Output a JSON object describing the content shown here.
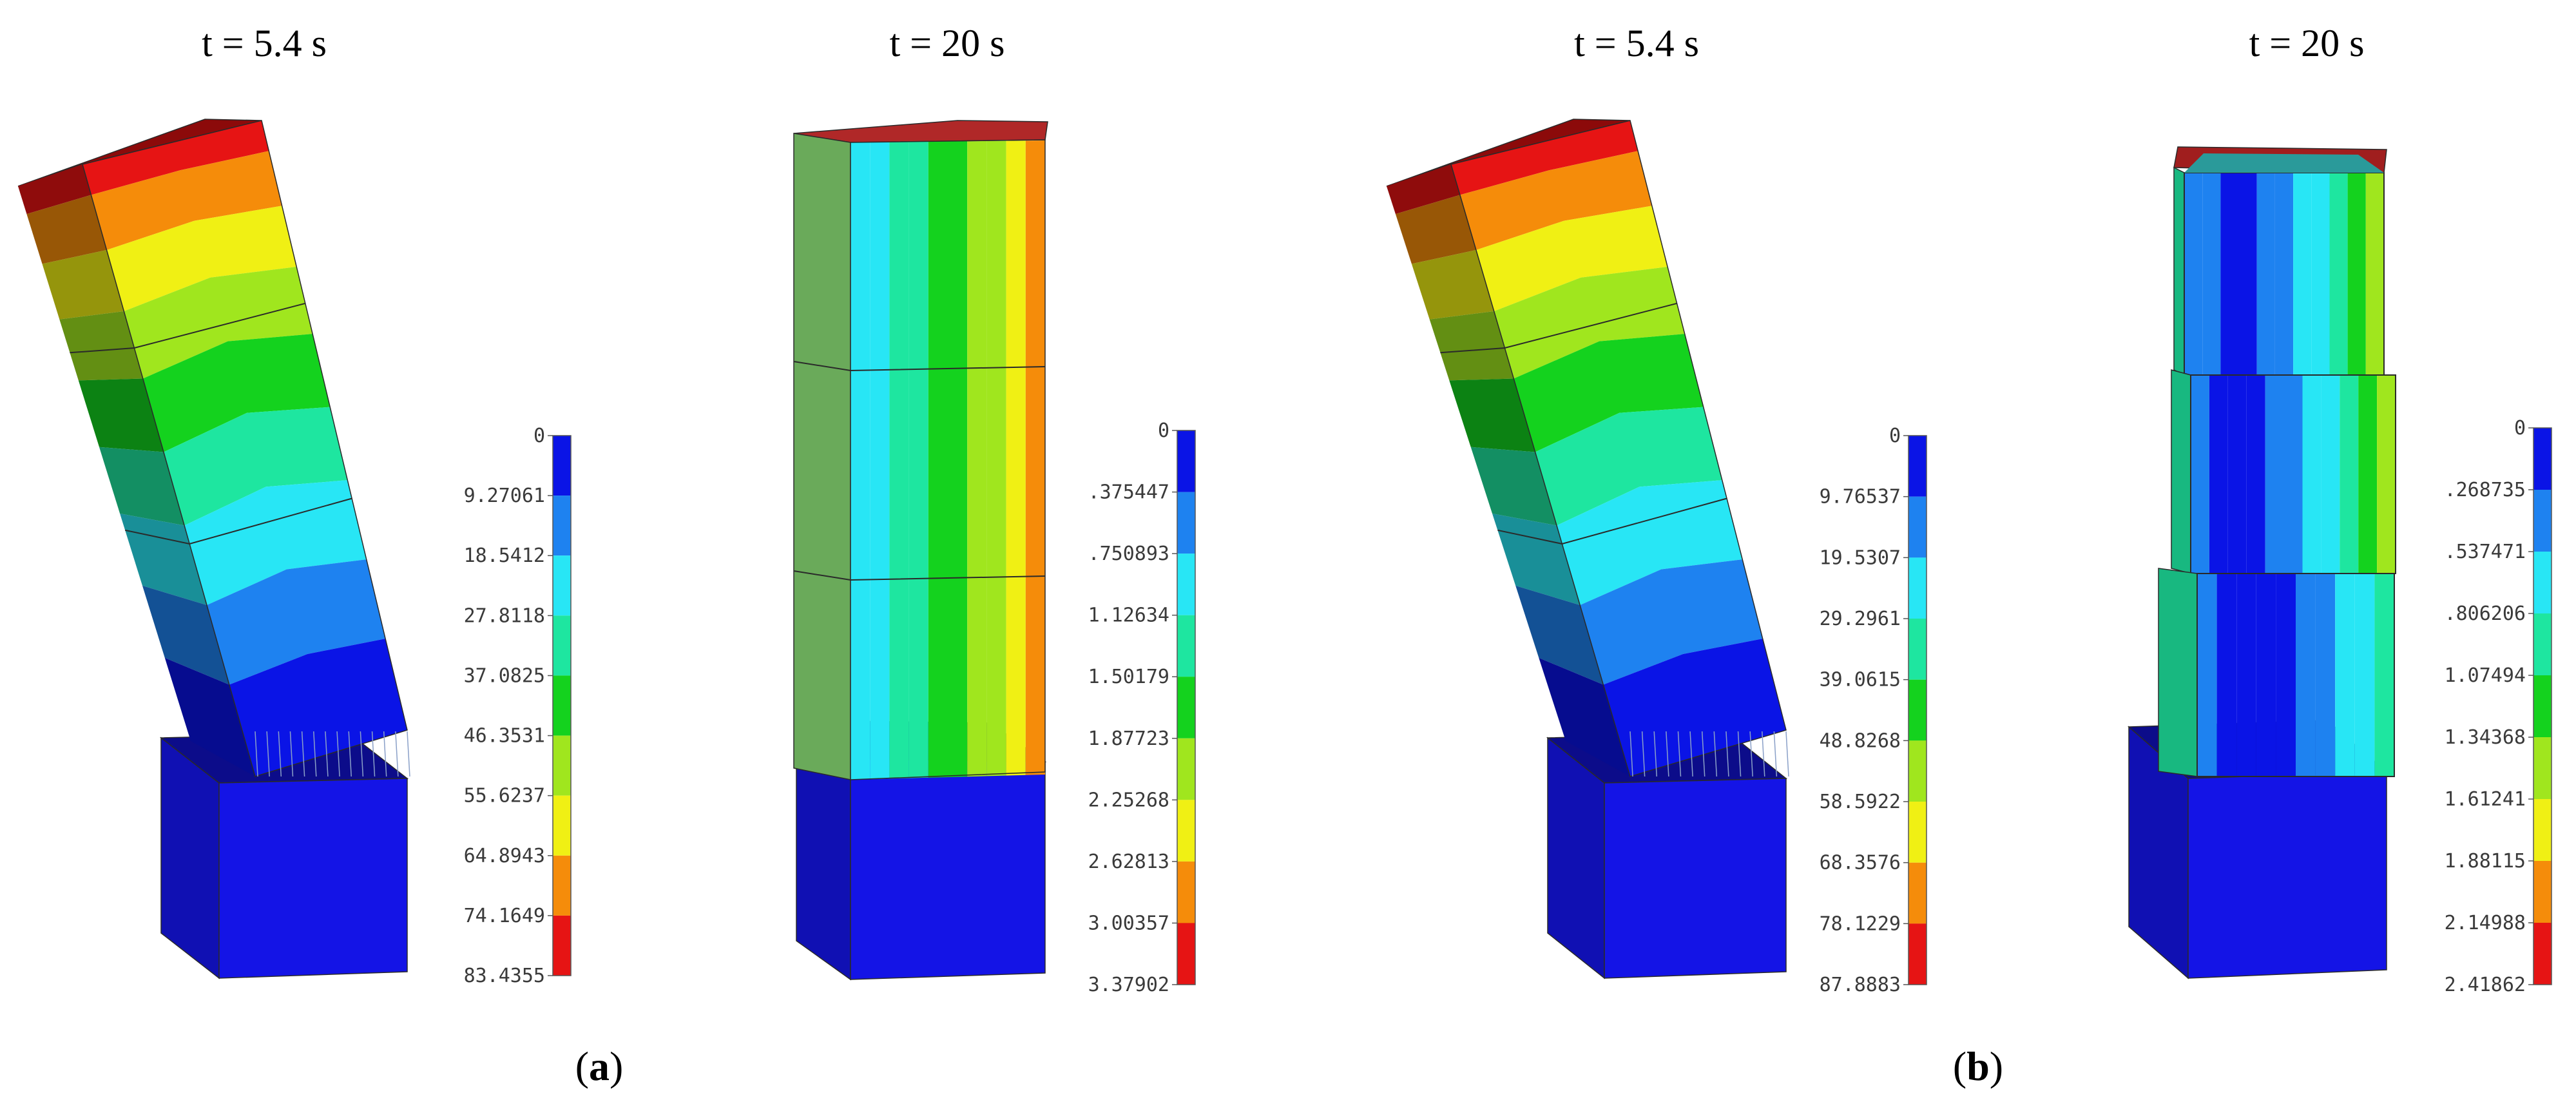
{
  "panels": [
    {
      "label_open": "(",
      "label_letter": "a",
      "label_close": ")",
      "snapshots": [
        {
          "time_label": "t = 5.4 s",
          "state": "tilted",
          "colorbar": [
            "0",
            "9.27061",
            "18.5412",
            "27.8118",
            "37.0825",
            "46.3531",
            "55.6237",
            "64.8943",
            "74.1649",
            "83.4355"
          ]
        },
        {
          "time_label": "t = 20 s",
          "state": "upright",
          "colorbar": [
            "0",
            ".375447",
            ".750893",
            "1.12634",
            "1.50179",
            "1.87723",
            "2.25268",
            "2.62813",
            "3.00357",
            "3.37902"
          ]
        }
      ]
    },
    {
      "label_open": "(",
      "label_letter": "b",
      "label_close": ")",
      "snapshots": [
        {
          "time_label": "t = 5.4 s",
          "state": "tilted",
          "colorbar": [
            "0",
            "9.76537",
            "19.5307",
            "29.2961",
            "39.0615",
            "48.8268",
            "58.5922",
            "68.3576",
            "78.1229",
            "87.8883"
          ]
        },
        {
          "time_label": "t = 20 s",
          "state": "upright-stepped",
          "colorbar": [
            "0",
            ".268735",
            ".537471",
            ".806206",
            "1.07494",
            "1.34368",
            "1.61241",
            "1.88115",
            "2.14988",
            "2.41862"
          ]
        }
      ]
    }
  ],
  "colormap": [
    "#0a14e6",
    "#1e82f0",
    "#28e6f5",
    "#1ee6a0",
    "#14d21e",
    "#a0e61e",
    "#f0f014",
    "#f58c0a",
    "#e61414"
  ],
  "edge_color": "#2a2a2a",
  "base_block_color": "#1414e6"
}
